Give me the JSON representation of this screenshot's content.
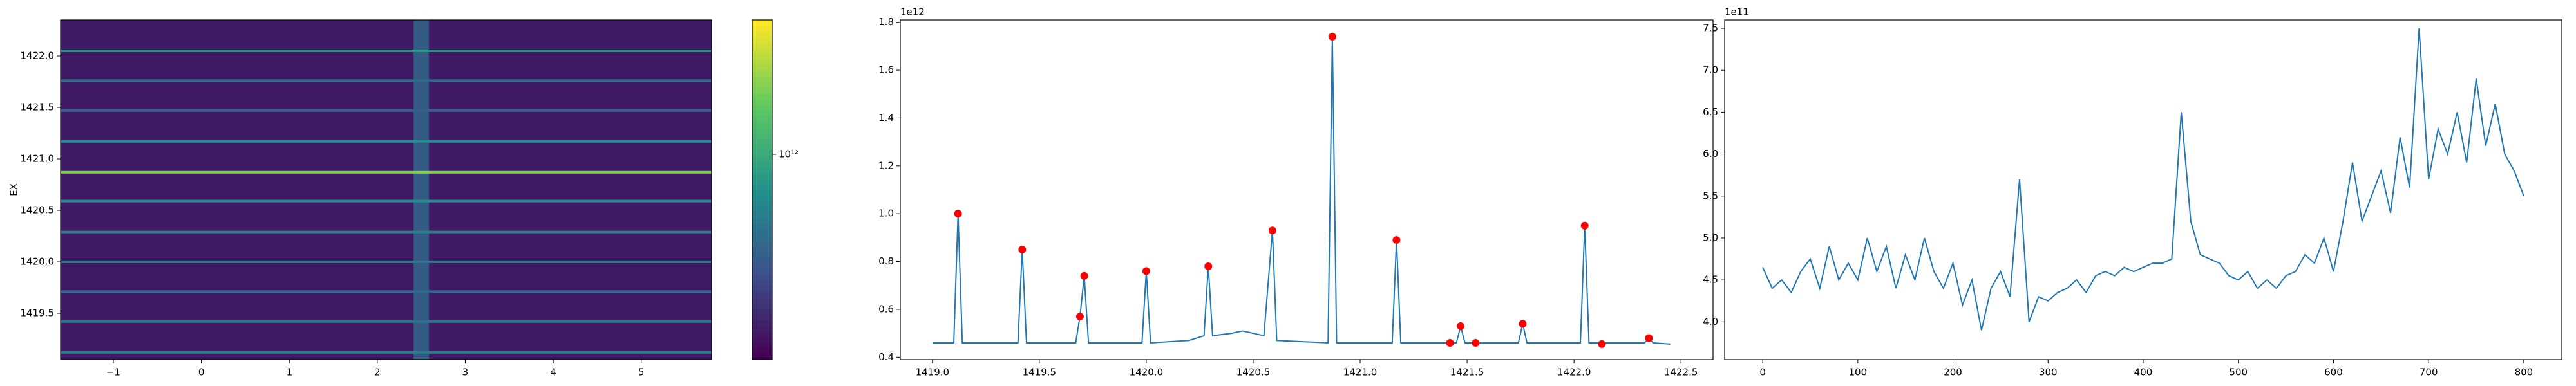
{
  "chart_data": [
    {
      "type": "heatmap",
      "ylabel": "EX",
      "xlim": [
        -1.6,
        5.8
      ],
      "ylim": [
        1419.05,
        1422.35
      ],
      "xticks": [
        {
          "value": -1,
          "label": "−1"
        },
        0,
        1,
        2,
        3,
        4,
        5
      ],
      "yticks": [
        1419.5,
        {
          "value": 1420,
          "label": "1420.0"
        },
        1420.5,
        {
          "value": 1421,
          "label": "1421.0"
        },
        1421.5,
        {
          "value": 1422,
          "label": "1422.0"
        }
      ],
      "background": 350000000000,
      "rows": [
        {
          "y": 1419.12,
          "value": 700000000000
        },
        {
          "y": 1419.42,
          "value": 650000000000
        },
        {
          "y": 1419.71,
          "value": 600000000000
        },
        {
          "y": 1420.0,
          "value": 650000000000
        },
        {
          "y": 1420.29,
          "value": 700000000000
        },
        {
          "y": 1420.59,
          "value": 800000000000
        },
        {
          "y": 1420.87,
          "value": 1500000000000
        },
        {
          "y": 1421.17,
          "value": 800000000000
        },
        {
          "y": 1421.47,
          "value": 550000000000
        },
        {
          "y": 1421.76,
          "value": 600000000000
        },
        {
          "y": 1422.05,
          "value": 850000000000
        }
      ],
      "columns": [
        {
          "x": 2.5,
          "value": 600000000000
        }
      ],
      "colorbar": {
        "lim": [
          300000000000,
          2200000000000
        ],
        "log": true,
        "ticks": [
          {
            "value": 1000000000000,
            "label": "10¹²"
          }
        ]
      }
    },
    {
      "type": "line",
      "offset_label": "1e12",
      "xlim": [
        1418.85,
        1422.65
      ],
      "ylim": [
        0.39,
        1.81
      ],
      "xticks": [
        {
          "value": 1419,
          "label": "1419.0"
        },
        1419.5,
        {
          "value": 1420,
          "label": "1420.0"
        },
        1420.5,
        {
          "value": 1421,
          "label": "1421.0"
        },
        1421.5,
        {
          "value": 1422,
          "label": "1422.0"
        },
        1422.5
      ],
      "yticks": [
        0.4,
        0.6,
        0.8,
        {
          "value": 1,
          "label": "1.0"
        },
        1.2,
        1.4,
        1.6,
        1.8
      ],
      "series": [
        {
          "type": "line",
          "color": "#1f77b4",
          "x": [
            1419.0,
            1419.1,
            1419.12,
            1419.14,
            1419.4,
            1419.42,
            1419.44,
            1419.67,
            1419.69,
            1419.71,
            1419.73,
            1419.98,
            1420.0,
            1420.02,
            1420.2,
            1420.27,
            1420.29,
            1420.31,
            1420.4,
            1420.45,
            1420.55,
            1420.59,
            1420.61,
            1420.85,
            1420.87,
            1420.89,
            1421.15,
            1421.17,
            1421.19,
            1421.45,
            1421.47,
            1421.49,
            1421.74,
            1421.76,
            1421.78,
            1422.03,
            1422.05,
            1422.07,
            1422.33,
            1422.35,
            1422.37,
            1422.45
          ],
          "values": [
            0.46,
            0.46,
            1.0,
            0.46,
            0.46,
            0.85,
            0.46,
            0.46,
            0.57,
            0.74,
            0.46,
            0.46,
            0.76,
            0.46,
            0.47,
            0.49,
            0.78,
            0.49,
            0.5,
            0.51,
            0.49,
            0.93,
            0.47,
            0.46,
            1.74,
            0.46,
            0.46,
            0.89,
            0.46,
            0.46,
            0.53,
            0.46,
            0.46,
            0.54,
            0.46,
            0.46,
            0.95,
            0.46,
            0.46,
            0.48,
            0.46,
            0.455
          ]
        },
        {
          "type": "scatter",
          "color": "#ff0000",
          "x": [
            1419.12,
            1419.42,
            1419.69,
            1419.71,
            1420.0,
            1420.29,
            1420.59,
            1420.87,
            1421.17,
            1421.42,
            1421.47,
            1421.54,
            1421.76,
            1422.05,
            1422.13,
            1422.35
          ],
          "values": [
            1.0,
            0.85,
            0.57,
            0.74,
            0.76,
            0.78,
            0.93,
            1.74,
            0.89,
            0.46,
            0.53,
            0.46,
            0.54,
            0.95,
            0.455,
            0.48
          ]
        }
      ]
    },
    {
      "type": "line",
      "offset_label": "1e11",
      "xlim": [
        -40,
        840
      ],
      "ylim": [
        3.55,
        7.6
      ],
      "xticks": [
        0,
        100,
        200,
        300,
        400,
        500,
        600,
        700,
        800
      ],
      "yticks": [
        {
          "value": 4,
          "label": "4.0"
        },
        4.5,
        {
          "value": 5,
          "label": "5.0"
        },
        5.5,
        {
          "value": 6,
          "label": "6.0"
        },
        6.5,
        {
          "value": 7,
          "label": "7.0"
        },
        7.5
      ],
      "series": [
        {
          "type": "line",
          "color": "#1f77b4",
          "x": [
            0,
            10,
            20,
            30,
            40,
            50,
            60,
            70,
            80,
            90,
            100,
            110,
            120,
            130,
            140,
            150,
            160,
            170,
            180,
            190,
            200,
            210,
            220,
            230,
            240,
            250,
            260,
            270,
            280,
            290,
            300,
            310,
            320,
            330,
            340,
            350,
            360,
            370,
            380,
            390,
            400,
            410,
            420,
            430,
            440,
            450,
            460,
            470,
            480,
            490,
            500,
            510,
            520,
            530,
            540,
            550,
            560,
            570,
            580,
            590,
            600,
            610,
            620,
            630,
            640,
            650,
            660,
            670,
            680,
            690,
            700,
            710,
            720,
            730,
            740,
            750,
            760,
            770,
            780,
            790,
            800
          ],
          "values": [
            4.65,
            4.4,
            4.5,
            4.35,
            4.6,
            4.75,
            4.4,
            4.9,
            4.5,
            4.7,
            4.5,
            5.0,
            4.6,
            4.9,
            4.4,
            4.8,
            4.5,
            5.0,
            4.6,
            4.4,
            4.7,
            4.2,
            4.5,
            3.9,
            4.4,
            4.6,
            4.3,
            5.7,
            4.0,
            4.3,
            4.25,
            4.35,
            4.4,
            4.5,
            4.35,
            4.55,
            4.6,
            4.55,
            4.65,
            4.6,
            4.65,
            4.7,
            4.7,
            4.75,
            6.5,
            5.2,
            4.8,
            4.75,
            4.7,
            4.55,
            4.5,
            4.6,
            4.4,
            4.5,
            4.4,
            4.55,
            4.6,
            4.8,
            4.7,
            5.0,
            4.6,
            5.2,
            5.9,
            5.2,
            5.5,
            5.8,
            5.3,
            6.2,
            5.6,
            7.5,
            5.7,
            6.3,
            6.0,
            6.5,
            5.9,
            6.9,
            6.1,
            6.6,
            6.0,
            5.8,
            5.5
          ]
        }
      ]
    }
  ]
}
